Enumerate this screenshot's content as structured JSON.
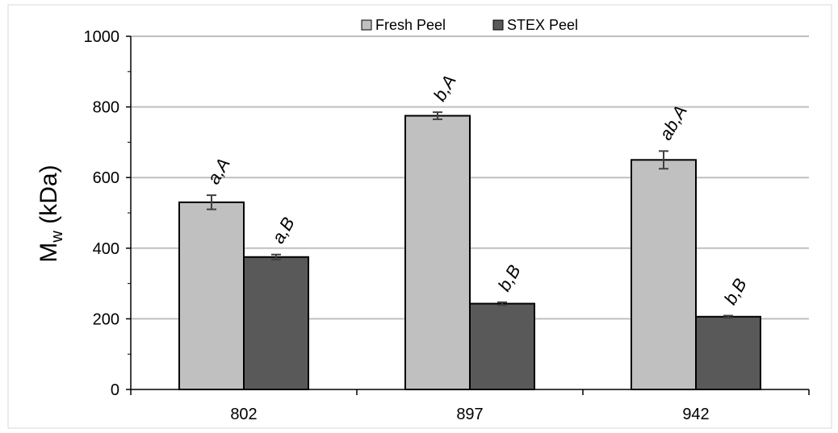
{
  "chart_data": {
    "type": "bar",
    "categories": [
      "802",
      "897",
      "942"
    ],
    "series": [
      {
        "name": "Fresh Peel",
        "color": "#c0c0c0",
        "values": [
          530,
          775,
          650
        ],
        "errors": [
          20,
          10,
          25
        ],
        "labels": [
          "a,A",
          "b,A",
          "ab,A"
        ]
      },
      {
        "name": "STEX Peel",
        "color": "#595959",
        "values": [
          375,
          243,
          206
        ],
        "errors": [
          7,
          4,
          3
        ],
        "labels": [
          "a,B",
          "b,B",
          "b,B"
        ]
      }
    ],
    "ylabel_main": "M",
    "ylabel_sub": "w",
    "ylabel_unit": " (kDa)",
    "ylim": [
      0,
      1000
    ],
    "yticks": [
      "0",
      "200",
      "400",
      "600",
      "800",
      "1000"
    ],
    "ytick_values": [
      0,
      200,
      400,
      600,
      800,
      1000
    ],
    "grid": true,
    "legend_position": "top-center"
  }
}
